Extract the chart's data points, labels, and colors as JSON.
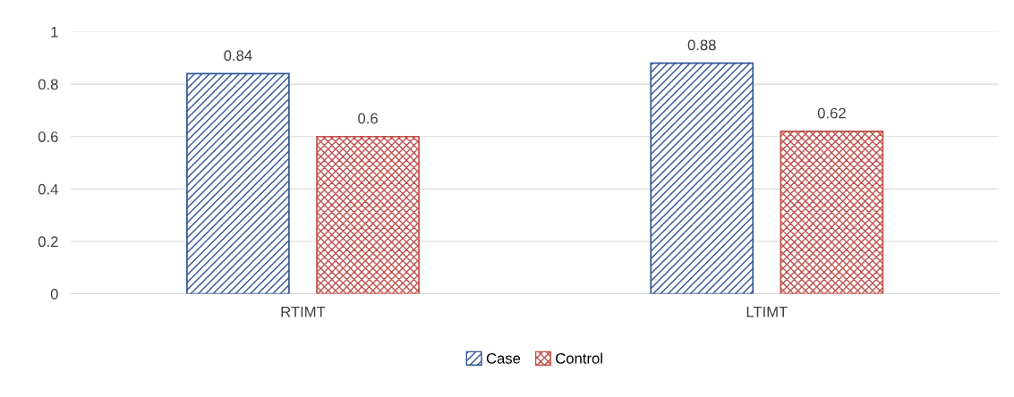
{
  "chart_data": {
    "type": "bar",
    "categories": [
      "RTIMT",
      "LTIMT"
    ],
    "series": [
      {
        "name": "Case",
        "color": "#2f5597",
        "values": [
          0.84,
          0.88
        ]
      },
      {
        "name": "Control",
        "color": "#c0504d",
        "values": [
          0.6,
          0.62
        ]
      }
    ],
    "ylim": [
      0,
      1
    ],
    "yticks": [
      0,
      0.2,
      0.4,
      0.6,
      0.8,
      1
    ],
    "grid": "y",
    "legend": "bottom",
    "data_labels": true
  }
}
